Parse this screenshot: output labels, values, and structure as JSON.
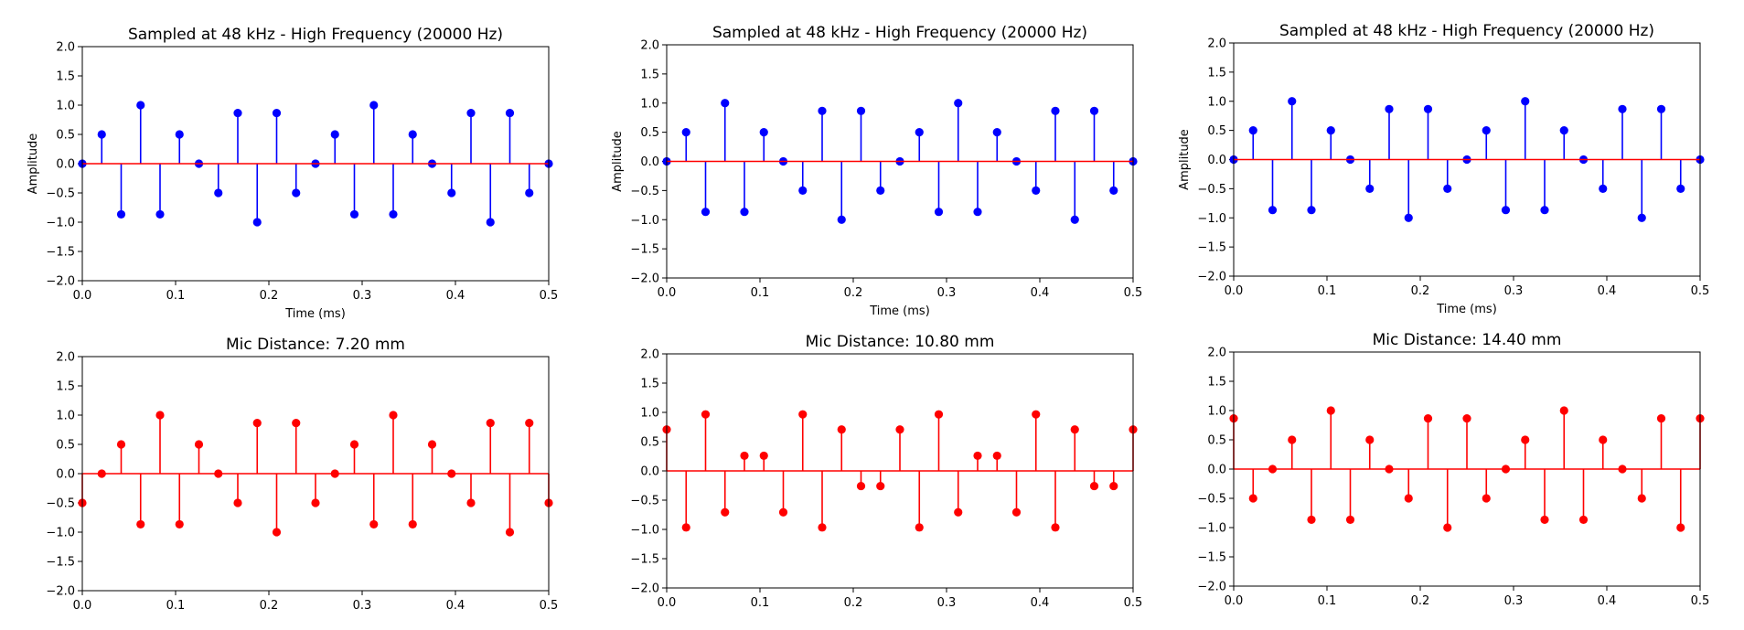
{
  "figure": {
    "colors": {
      "top_stem": "#0000ff",
      "bottom_stem": "#ff0000",
      "baseline": "#ff0000",
      "axis": "#000000"
    }
  },
  "chart_data": [
    {
      "type": "stem",
      "title": "Sampled at 48 kHz - High Frequency (20000 Hz)",
      "xlabel": "Time (ms)",
      "ylabel": "Amplitude",
      "xlim": [
        0,
        0.5
      ],
      "ylim": [
        -2,
        2
      ],
      "xticks": [
        "0.0",
        "0.1",
        "0.2",
        "0.3",
        "0.4",
        "0.5"
      ],
      "yticks": [
        "-2.0",
        "-1.5",
        "-1.0",
        "-0.5",
        "0.0",
        "0.5",
        "1.0",
        "1.5",
        "2.0"
      ],
      "color": "#0000ff",
      "series": [
        {
          "values": [
            0,
            0.5,
            -0.866,
            1,
            -0.866,
            0.5,
            0,
            -0.5,
            0.866,
            -1,
            0.866,
            -0.5,
            0,
            0.5,
            -0.866,
            1,
            -0.866,
            0.5,
            0,
            -0.5,
            0.866,
            -1,
            0.866,
            -0.5,
            0
          ]
        }
      ],
      "x_step_ms": 0.0208333
    },
    {
      "type": "stem",
      "title": "Sampled at 48 kHz - High Frequency (20000 Hz)",
      "xlabel": "Time (ms)",
      "ylabel": "Amplitude",
      "xlim": [
        0,
        0.5
      ],
      "ylim": [
        -2,
        2
      ],
      "xticks": [
        "0.0",
        "0.1",
        "0.2",
        "0.3",
        "0.4",
        "0.5"
      ],
      "yticks": [
        "-2.0",
        "-1.5",
        "-1.0",
        "-0.5",
        "0.0",
        "0.5",
        "1.0",
        "1.5",
        "2.0"
      ],
      "color": "#0000ff",
      "series": [
        {
          "values": [
            0,
            0.5,
            -0.866,
            1,
            -0.866,
            0.5,
            0,
            -0.5,
            0.866,
            -1,
            0.866,
            -0.5,
            0,
            0.5,
            -0.866,
            1,
            -0.866,
            0.5,
            0,
            -0.5,
            0.866,
            -1,
            0.866,
            -0.5,
            0
          ]
        }
      ],
      "x_step_ms": 0.0208333
    },
    {
      "type": "stem",
      "title": "Sampled at 48 kHz - High Frequency (20000 Hz)",
      "xlabel": "Time (ms)",
      "ylabel": "Amplitude",
      "xlim": [
        0,
        0.5
      ],
      "ylim": [
        -2,
        2
      ],
      "xticks": [
        "0.0",
        "0.1",
        "0.2",
        "0.3",
        "0.4",
        "0.5"
      ],
      "yticks": [
        "-2.0",
        "-1.5",
        "-1.0",
        "-0.5",
        "0.0",
        "0.5",
        "1.0",
        "1.5",
        "2.0"
      ],
      "color": "#0000ff",
      "series": [
        {
          "values": [
            0,
            0.5,
            -0.866,
            1,
            -0.866,
            0.5,
            0,
            -0.5,
            0.866,
            -1,
            0.866,
            -0.5,
            0,
            0.5,
            -0.866,
            1,
            -0.866,
            0.5,
            0,
            -0.5,
            0.866,
            -1,
            0.866,
            -0.5,
            0
          ]
        }
      ],
      "x_step_ms": 0.0208333
    },
    {
      "type": "stem",
      "title": "Mic Distance: 7.20 mm",
      "xlabel": "",
      "ylabel": "",
      "xlim": [
        0,
        0.5
      ],
      "ylim": [
        -2,
        2
      ],
      "xticks": [
        "0.0",
        "0.1",
        "0.2",
        "0.3",
        "0.4",
        "0.5"
      ],
      "yticks": [
        "-2.0",
        "-1.5",
        "-1.0",
        "-0.5",
        "0.0",
        "0.5",
        "1.0",
        "1.5",
        "2.0"
      ],
      "color": "#ff0000",
      "series": [
        {
          "values": [
            -0.5,
            0,
            0.5,
            -0.866,
            1,
            -0.866,
            0.5,
            0,
            -0.5,
            0.866,
            -1,
            0.866,
            -0.5,
            0,
            0.5,
            -0.866,
            1,
            -0.866,
            0.5,
            0,
            -0.5,
            0.866,
            -1,
            0.866,
            -0.5
          ]
        }
      ],
      "x_step_ms": 0.0208333
    },
    {
      "type": "stem",
      "title": "Mic Distance: 10.80 mm",
      "xlabel": "",
      "ylabel": "",
      "xlim": [
        0,
        0.5
      ],
      "ylim": [
        -2,
        2
      ],
      "xticks": [
        "0.0",
        "0.1",
        "0.2",
        "0.3",
        "0.4",
        "0.5"
      ],
      "yticks": [
        "-2.0",
        "-1.5",
        "-1.0",
        "-0.5",
        "0.0",
        "0.5",
        "1.0",
        "1.5",
        "2.0"
      ],
      "color": "#ff0000",
      "series": [
        {
          "values": [
            0.707,
            -0.966,
            0.966,
            -0.707,
            0.259,
            0.259,
            -0.707,
            0.966,
            -0.966,
            0.707,
            -0.259,
            -0.259,
            0.707,
            -0.966,
            0.966,
            -0.707,
            0.259,
            0.259,
            -0.707,
            0.966,
            -0.966,
            0.707,
            -0.259,
            -0.259,
            0.707
          ]
        }
      ],
      "x_step_ms": 0.0208333
    },
    {
      "type": "stem",
      "title": "Mic Distance: 14.40 mm",
      "xlabel": "",
      "ylabel": "",
      "xlim": [
        0,
        0.5
      ],
      "ylim": [
        -2,
        2
      ],
      "xticks": [
        "0.0",
        "0.1",
        "0.2",
        "0.3",
        "0.4",
        "0.5"
      ],
      "yticks": [
        "-2.0",
        "-1.5",
        "-1.0",
        "-0.5",
        "0.0",
        "0.5",
        "1.0",
        "1.5",
        "2.0"
      ],
      "color": "#ff0000",
      "series": [
        {
          "values": [
            0.866,
            -0.5,
            0,
            0.5,
            -0.866,
            1,
            -0.866,
            0.5,
            0,
            -0.5,
            0.866,
            -1,
            0.866,
            -0.5,
            0,
            0.5,
            -0.866,
            1,
            -0.866,
            0.5,
            0,
            -0.5,
            0.866,
            -1,
            0.866
          ]
        }
      ],
      "x_step_ms": 0.0208333
    }
  ]
}
